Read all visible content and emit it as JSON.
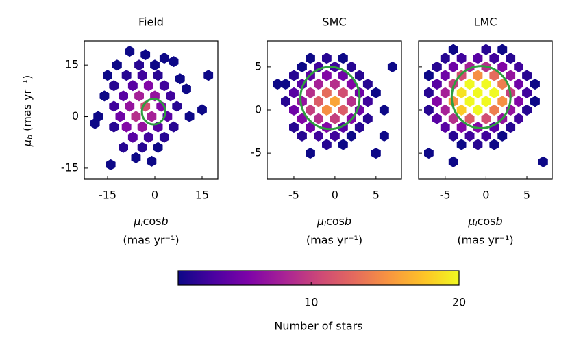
{
  "chart_data": [
    {
      "type": "hexbin",
      "title": "Field",
      "xlabel": {
        "symbol": "μ",
        "sub": "l",
        "text": "cos",
        "italic": "b",
        "unit": "(mas yr⁻¹)"
      },
      "ylabel": {
        "symbol": "μ",
        "sub": "b",
        "unit": "(mas yr⁻¹)"
      },
      "xlim": [
        -22.4,
        20
      ],
      "ylim": [
        -18.2,
        22
      ],
      "xticks": [
        -15,
        0,
        15
      ],
      "yticks": [
        -15,
        0,
        15
      ],
      "circle": {
        "x": -0.4,
        "y": 1.4,
        "r": 3.7,
        "color": "#2e9e3e"
      },
      "cells": {
        "x": [
          -8,
          -3,
          3,
          -12,
          -5,
          0,
          6,
          -15,
          -9,
          -4,
          1,
          8,
          -13,
          -7,
          -2,
          3,
          10,
          -16,
          -10,
          -5,
          0,
          5,
          -13,
          -8,
          -3,
          2,
          7,
          -18,
          -11,
          -6,
          -1,
          4,
          11,
          -9,
          -4,
          1,
          6,
          -13,
          -7,
          -2,
          3,
          -10,
          -4,
          1,
          -6,
          -1,
          -14,
          17,
          15,
          -19
        ],
        "y": [
          19,
          18,
          17,
          15,
          15,
          15,
          16,
          12,
          12,
          12,
          12,
          11,
          9,
          9,
          9,
          9,
          8,
          6,
          6,
          6,
          6,
          6,
          3,
          3,
          3,
          3,
          3,
          0,
          0,
          0,
          0,
          0,
          0,
          -3,
          -3,
          -3,
          -3,
          -3,
          -6,
          -6,
          -6,
          -9,
          -9,
          -9,
          -12,
          -13,
          -14,
          12,
          2,
          -2
        ],
        "counts": [
          1,
          1,
          1,
          1,
          2,
          1,
          1,
          1,
          2,
          3,
          2,
          1,
          2,
          4,
          6,
          3,
          1,
          1,
          4,
          8,
          7,
          3,
          3,
          7,
          11,
          6,
          2,
          1,
          5,
          9,
          8,
          4,
          1,
          6,
          7,
          4,
          2,
          2,
          4,
          3,
          2,
          2,
          2,
          1,
          1,
          1,
          1,
          1,
          1,
          1
        ]
      }
    },
    {
      "type": "hexbin",
      "title": "SMC",
      "xlabel": {
        "symbol": "μ",
        "sub": "l",
        "text": "cos",
        "italic": "b",
        "unit": "(mas yr⁻¹)"
      },
      "xlim": [
        -8.25,
        8.1
      ],
      "ylim": [
        -8,
        8
      ],
      "xticks": [
        -5,
        0,
        5
      ],
      "yticks": [
        -5,
        0,
        5
      ],
      "circle": {
        "x": -0.6,
        "y": 1.4,
        "r": 3.6,
        "color": "#2e9e3e"
      },
      "cells": {
        "x": [
          -3,
          -1,
          1,
          -4,
          -2,
          0,
          2,
          -5,
          -3,
          -1,
          1,
          3,
          -6,
          -4,
          -2,
          0,
          2,
          4,
          -5,
          -3,
          -1,
          1,
          3,
          5,
          -6,
          -4,
          -2,
          0,
          2,
          4,
          -5,
          -3,
          -1,
          1,
          3,
          6,
          -4,
          -2,
          0,
          2,
          4,
          -5,
          -3,
          -1,
          1,
          3,
          -4,
          -2,
          0,
          2,
          -1,
          1,
          -3,
          5,
          -7,
          7,
          6
        ],
        "y": [
          6,
          6,
          6,
          5,
          5,
          5,
          5,
          4,
          4,
          4,
          4,
          4,
          3,
          3,
          3,
          3,
          3,
          3,
          2,
          2,
          2,
          2,
          2,
          2,
          1,
          1,
          1,
          1,
          1,
          1,
          0,
          0,
          0,
          0,
          0,
          0,
          -1,
          -1,
          -1,
          -1,
          -1,
          -2,
          -2,
          -2,
          -2,
          -2,
          -3,
          -3,
          -3,
          -3,
          -4,
          -4,
          -5,
          -5,
          3,
          5,
          -3
        ],
        "counts": [
          1,
          2,
          1,
          1,
          3,
          3,
          2,
          2,
          4,
          6,
          5,
          2,
          1,
          4,
          8,
          9,
          6,
          2,
          4,
          9,
          13,
          11,
          5,
          1,
          2,
          7,
          12,
          16,
          9,
          3,
          5,
          10,
          15,
          12,
          5,
          1,
          6,
          9,
          10,
          6,
          2,
          2,
          5,
          6,
          4,
          2,
          2,
          3,
          3,
          1,
          2,
          1,
          1,
          1,
          1,
          1,
          1
        ]
      }
    },
    {
      "type": "hexbin",
      "title": "LMC",
      "xlabel": {
        "symbol": "μ",
        "sub": "l",
        "text": "cos",
        "italic": "b",
        "unit": "(mas yr⁻¹)"
      },
      "xlim": [
        -8.25,
        8.1
      ],
      "ylim": [
        -8,
        8
      ],
      "xticks": [
        -5,
        0,
        5
      ],
      "yticks": [
        -5,
        0,
        5
      ],
      "ytick_labels": false,
      "circle": {
        "x": -0.6,
        "y": 1.5,
        "r": 3.6,
        "color": "#2e9e3e"
      },
      "cells": {
        "x": [
          -4,
          0,
          2,
          -5,
          -3,
          -1,
          1,
          3,
          -6,
          -4,
          -2,
          0,
          2,
          4,
          -7,
          -5,
          -3,
          -1,
          1,
          3,
          5,
          -6,
          -4,
          -2,
          0,
          2,
          4,
          6,
          -7,
          -5,
          -3,
          -1,
          1,
          3,
          5,
          -6,
          -4,
          -2,
          0,
          2,
          4,
          6,
          -7,
          -5,
          -3,
          -1,
          1,
          3,
          5,
          -6,
          -4,
          -2,
          0,
          2,
          4,
          -5,
          -3,
          -1,
          1,
          3,
          -4,
          -2,
          0,
          2,
          -3,
          -1,
          1,
          -7,
          -4,
          7
        ],
        "y": [
          7,
          7,
          7,
          6,
          6,
          6,
          6,
          6,
          5,
          5,
          5,
          5,
          5,
          5,
          4,
          4,
          4,
          4,
          4,
          4,
          4,
          3,
          3,
          3,
          3,
          3,
          3,
          3,
          2,
          2,
          2,
          2,
          2,
          2,
          2,
          1,
          1,
          1,
          1,
          1,
          1,
          1,
          0,
          0,
          0,
          0,
          0,
          0,
          0,
          -1,
          -1,
          -1,
          -1,
          -1,
          -1,
          -2,
          -2,
          -2,
          -2,
          -2,
          -3,
          -3,
          -3,
          -3,
          -4,
          -4,
          -4,
          -5,
          -6,
          -6
        ],
        "counts": [
          1,
          2,
          1,
          2,
          3,
          4,
          3,
          2,
          2,
          5,
          8,
          9,
          6,
          3,
          1,
          5,
          11,
          15,
          13,
          7,
          2,
          4,
          10,
          20,
          22,
          14,
          5,
          1,
          2,
          8,
          19,
          25,
          21,
          10,
          3,
          6,
          15,
          24,
          23,
          15,
          6,
          1,
          2,
          8,
          18,
          20,
          14,
          7,
          2,
          4,
          9,
          12,
          11,
          7,
          3,
          4,
          6,
          6,
          4,
          2,
          2,
          3,
          3,
          1,
          1,
          2,
          1,
          1,
          1,
          1
        ]
      }
    },
    {
      "type": "colorbar",
      "colormap": "plasma",
      "label": "Number of stars",
      "clim": [
        1,
        20
      ],
      "ticks": [
        10,
        20
      ]
    }
  ]
}
